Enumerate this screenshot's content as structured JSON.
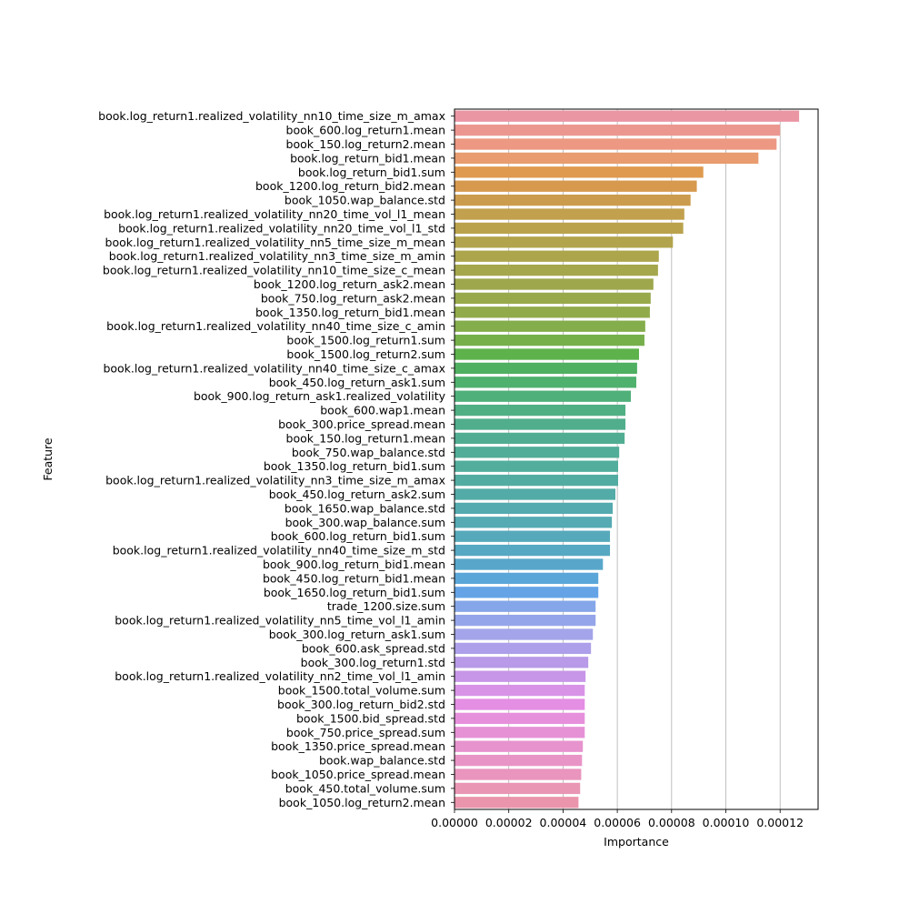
{
  "chart_data": {
    "type": "bar",
    "orientation": "horizontal",
    "title": "",
    "xlabel": "Importance",
    "ylabel": "Feature",
    "xlim": [
      0,
      0.000134
    ],
    "xticks": [
      0,
      2e-05,
      4e-05,
      6e-05,
      8e-05,
      0.0001,
      0.00012
    ],
    "xtick_labels": [
      "0.00000",
      "0.00002",
      "0.00004",
      "0.00006",
      "0.00008",
      "0.00010",
      "0.00012"
    ],
    "grid": "vertical",
    "categories": [
      "book.log_return1.realized_volatility_nn10_time_size_m_amax",
      "book_600.log_return1.mean",
      "book_150.log_return2.mean",
      "book.log_return_bid1.mean",
      "book.log_return_bid1.sum",
      "book_1200.log_return_bid2.mean",
      "book_1050.wap_balance.std",
      "book.log_return1.realized_volatility_nn20_time_vol_l1_mean",
      "book.log_return1.realized_volatility_nn20_time_vol_l1_std",
      "book.log_return1.realized_volatility_nn5_time_size_m_mean",
      "book.log_return1.realized_volatility_nn3_time_size_m_amin",
      "book.log_return1.realized_volatility_nn10_time_size_c_mean",
      "book_1200.log_return_ask2.mean",
      "book_750.log_return_ask2.mean",
      "book_1350.log_return_bid1.mean",
      "book.log_return1.realized_volatility_nn40_time_size_c_amin",
      "book_1500.log_return1.sum",
      "book_1500.log_return2.sum",
      "book.log_return1.realized_volatility_nn40_time_size_c_amax",
      "book_450.log_return_ask1.sum",
      "book_900.log_return_ask1.realized_volatility",
      "book_600.wap1.mean",
      "book_300.price_spread.mean",
      "book_150.log_return1.mean",
      "book_750.wap_balance.std",
      "book_1350.log_return_bid1.sum",
      "book.log_return1.realized_volatility_nn3_time_size_m_amax",
      "book_450.log_return_ask2.sum",
      "book_1650.wap_balance.std",
      "book_300.wap_balance.sum",
      "book_600.log_return_bid1.sum",
      "book.log_return1.realized_volatility_nn40_time_size_m_std",
      "book_900.log_return_bid1.mean",
      "book_450.log_return_bid1.mean",
      "book_1650.log_return_bid1.sum",
      "trade_1200.size.sum",
      "book.log_return1.realized_volatility_nn5_time_vol_l1_amin",
      "book_300.log_return_ask1.sum",
      "book_600.ask_spread.std",
      "book_300.log_return1.std",
      "book.log_return1.realized_volatility_nn2_time_vol_l1_amin",
      "book_1500.total_volume.sum",
      "book_300.log_return_bid2.std",
      "book_1500.bid_spread.std",
      "book_750.price_spread.sum",
      "book_1350.price_spread.mean",
      "book.wap_balance.std",
      "book_1050.price_spread.mean",
      "book_450.total_volume.sum",
      "book_1050.log_return2.mean"
    ],
    "values": [
      0.000127,
      0.00012,
      0.0001187,
      0.000112,
      9.17e-05,
      8.93e-05,
      8.7e-05,
      8.47e-05,
      8.43e-05,
      8.05e-05,
      7.53e-05,
      7.5e-05,
      7.33e-05,
      7.23e-05,
      7.2e-05,
      7.03e-05,
      7e-05,
      6.8e-05,
      6.73e-05,
      6.7e-05,
      6.5e-05,
      6.3e-05,
      6.3e-05,
      6.27e-05,
      6.07e-05,
      6.03e-05,
      6.03e-05,
      5.93e-05,
      5.83e-05,
      5.8e-05,
      5.73e-05,
      5.73e-05,
      5.47e-05,
      5.3e-05,
      5.3e-05,
      5.2e-05,
      5.2e-05,
      5.1e-05,
      5.03e-05,
      4.93e-05,
      4.83e-05,
      4.8e-05,
      4.8e-05,
      4.8e-05,
      4.8e-05,
      4.73e-05,
      4.7e-05,
      4.67e-05,
      4.63e-05,
      4.57e-05
    ],
    "colors": [
      "#ea96a3",
      "#eb9790",
      "#ed9882",
      "#e89c6f",
      "#df9a4f",
      "#d7994e",
      "#cc9c4e",
      "#c2a04d",
      "#baa24d",
      "#b2a44c",
      "#aca54c",
      "#a5a74c",
      "#9ea74c",
      "#98a94b",
      "#91ab4b",
      "#84ad4b",
      "#76b04b",
      "#5db24c",
      "#4fb061",
      "#4fb16e",
      "#50b07a",
      "#51af84",
      "#51ae8c",
      "#51ad92",
      "#52ad98",
      "#52ad9d",
      "#53aca2",
      "#53aba7",
      "#54aaae",
      "#55aab3",
      "#56a9ba",
      "#57a8c2",
      "#58a7ca",
      "#5ba6d8",
      "#64a4e6",
      "#85a6e8",
      "#95a5e9",
      "#a3a4e9",
      "#ad9fe9",
      "#b89ae8",
      "#c796e8",
      "#d893e7",
      "#e48ee4",
      "#e690dc",
      "#e691d6",
      "#e793ce",
      "#e894c6",
      "#e995bd",
      "#e995b4",
      "#ea95ab"
    ]
  }
}
